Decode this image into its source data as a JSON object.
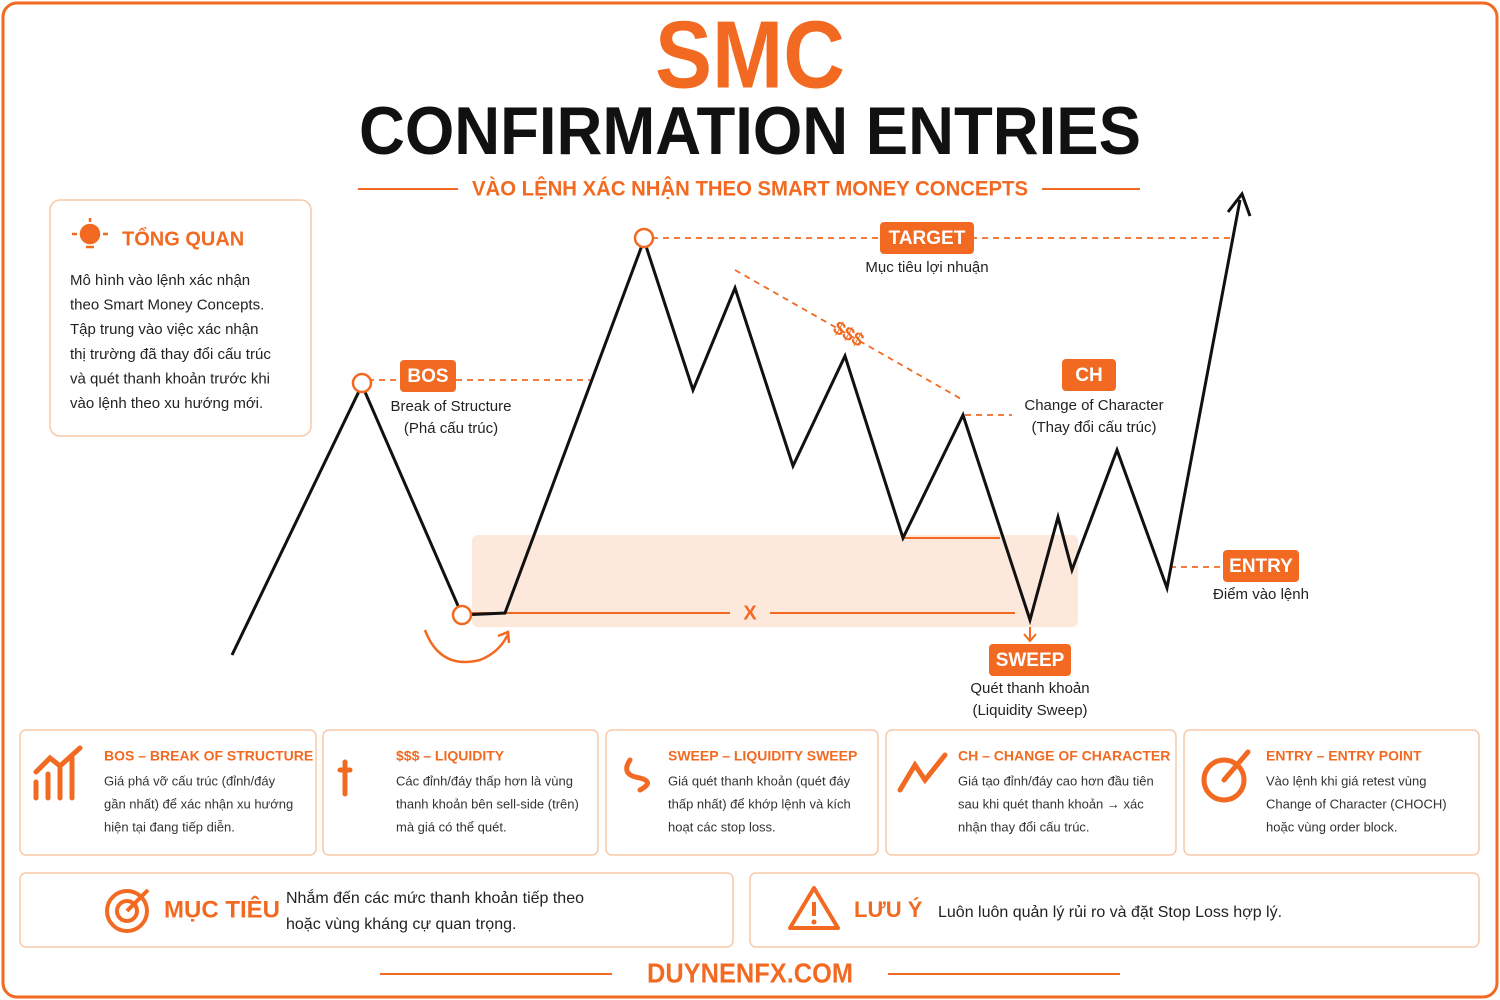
{
  "header": {
    "title": "SMC",
    "subtitle": "CONFIRMATION ENTRIES",
    "tagline": "VÀO LỆNH XÁC NHẬN THEO SMART MONEY CONCEPTS"
  },
  "overview": {
    "title": "TỔNG QUAN",
    "lines": [
      "Mô hình vào lệnh xác nhận",
      "theo Smart Money Concepts.",
      "Tập trung vào việc xác nhận",
      "thị trường đã thay đổi cấu trúc",
      "và quét thanh khoản trước khi",
      "vào lệnh theo xu hướng mới."
    ]
  },
  "diagram": {
    "bos": {
      "tag": "BOS",
      "lines": [
        "Break of Structure",
        "(Phá cấu trúc)"
      ]
    },
    "target": {
      "tag": "TARGET",
      "lines": [
        "Mục tiêu lợi nhuận"
      ]
    },
    "liquidity": "$$$",
    "ch": {
      "tag": "CH",
      "lines": [
        "Change of Character",
        "(Thay đổi cấu trúc)"
      ]
    },
    "range": "X",
    "sweep": {
      "tag": "SWEEP",
      "lines": [
        "Quét thanh khoản",
        "(Liquidity Sweep)"
      ]
    },
    "entry": {
      "tag": "ENTRY",
      "lines": [
        "Điểm vào lệnh"
      ]
    }
  },
  "cards": [
    {
      "title": "BOS – BREAK OF STRUCTURE",
      "lines": [
        "Giá phá vỡ cấu trúc (đỉnh/đáy",
        "gần nhất) để xác nhận xu hướng",
        "hiện tại đang tiếp diễn."
      ]
    },
    {
      "title": "$$$ – LIQUIDITY",
      "lines": [
        "Các đỉnh/đáy thấp hơn là vùng",
        "thanh khoản bên sell-side (trên)",
        "mà giá có thể quét."
      ]
    },
    {
      "title": "SWEEP – LIQUIDITY SWEEP",
      "lines": [
        "Giá quét thanh khoản (quét đáy",
        "thấp nhất) để khớp lệnh và kích",
        "hoạt các stop loss."
      ]
    },
    {
      "title": "CH – CHANGE OF CHARACTER",
      "lines": [
        "Giá tạo đỉnh/đáy cao hơn đầu tiên",
        "sau khi quét thanh khoản → xác",
        "nhận thay đổi cấu trúc."
      ]
    },
    {
      "title": "ENTRY – ENTRY POINT",
      "lines": [
        "Vào lệnh khi giá retest vùng",
        "Change of Character (CHOCH)",
        "hoặc vùng order block."
      ]
    }
  ],
  "goal": {
    "title": "MỤC TIÊU",
    "lines": [
      "Nhắm đến các mức thanh khoản tiếp theo",
      "hoặc vùng kháng cự quan trọng."
    ]
  },
  "note": {
    "title": "LƯU Ý",
    "text": "Luôn luôn quản lý rủi ro và đặt Stop Loss hợp lý."
  },
  "footer": "DUYNENFX.COM"
}
